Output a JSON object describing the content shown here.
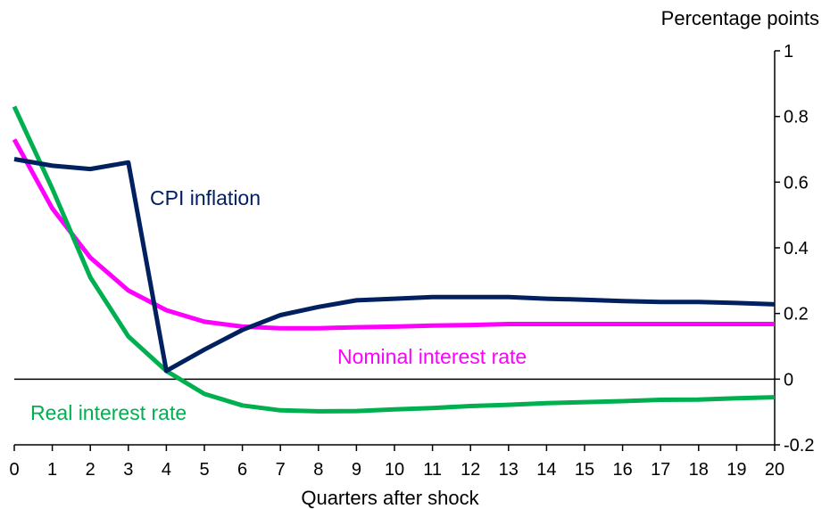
{
  "chart_data": {
    "type": "line",
    "unit_label": "Percentage points",
    "xlabel": "Quarters after shock",
    "x": [
      0,
      1,
      2,
      3,
      4,
      5,
      6,
      7,
      8,
      9,
      10,
      11,
      12,
      13,
      14,
      15,
      16,
      17,
      18,
      19,
      20
    ],
    "xlim": [
      0,
      20
    ],
    "ylim": [
      -0.2,
      1
    ],
    "yticks": [
      -0.2,
      0,
      0.2,
      0.4,
      0.6,
      0.8,
      1
    ],
    "ytick_labels": [
      "-0.2",
      "0",
      "0.2",
      "0.4",
      "0.6",
      "0.8",
      "1"
    ],
    "y_axis_side": "right",
    "zero_line": true,
    "grid": false,
    "legend": "inline labels",
    "series": [
      {
        "name": "CPI inflation",
        "color": "#002060",
        "values": [
          0.67,
          0.65,
          0.64,
          0.66,
          0.025,
          0.09,
          0.15,
          0.195,
          0.22,
          0.24,
          0.245,
          0.25,
          0.25,
          0.25,
          0.245,
          0.242,
          0.238,
          0.235,
          0.235,
          0.232,
          0.228
        ]
      },
      {
        "name": "Nominal interest rate",
        "color": "#FF00FF",
        "values": [
          0.73,
          0.52,
          0.37,
          0.27,
          0.21,
          0.175,
          0.16,
          0.155,
          0.155,
          0.158,
          0.16,
          0.163,
          0.165,
          0.168,
          0.168,
          0.168,
          0.168,
          0.168,
          0.168,
          0.168,
          0.168
        ]
      },
      {
        "name": "Real interest rate",
        "color": "#00B050",
        "values": [
          0.83,
          0.58,
          0.31,
          0.13,
          0.025,
          -0.045,
          -0.08,
          -0.095,
          -0.098,
          -0.097,
          -0.092,
          -0.088,
          -0.082,
          -0.078,
          -0.073,
          -0.07,
          -0.067,
          -0.063,
          -0.062,
          -0.058,
          -0.055
        ]
      }
    ]
  }
}
